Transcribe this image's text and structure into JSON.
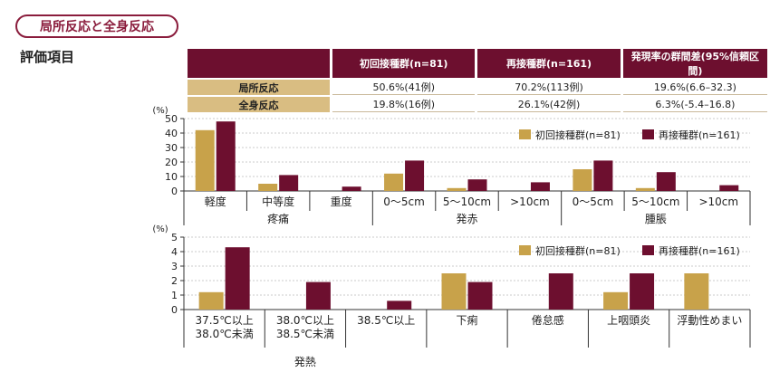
{
  "header": {
    "title": "局所反応と全身反応"
  },
  "section": {
    "label": "評価項目"
  },
  "colors": {
    "initial": "#c8a24a",
    "booster": "#6d0f2f",
    "header_bg": "#6d0f2f",
    "row_bg": "#d9bd82"
  },
  "table": {
    "columns": [
      "初回接種群(n=81)",
      "再接種群(n=161)",
      "発現率の群間差(95%信頼区間)"
    ],
    "rows": [
      {
        "label": "局所反応",
        "values": [
          "50.6%(41例)",
          "70.2%(113例)",
          "19.6%(6.6–32.3)"
        ]
      },
      {
        "label": "全身反応",
        "values": [
          "19.8%(16例)",
          "26.1%(42例)",
          "6.3%(-5.4–16.8)"
        ]
      }
    ]
  },
  "chart_data": [
    {
      "type": "bar",
      "y_unit": "(%)",
      "ylim": [
        0,
        50
      ],
      "yticks": [
        0,
        10,
        20,
        30,
        40,
        50
      ],
      "grid": true,
      "legend_position": "top-right",
      "categories": [
        "軽度",
        "中等度",
        "重度",
        "0～5cm",
        "5～10cm",
        ">10cm",
        "0～5cm",
        "5～10cm",
        ">10cm"
      ],
      "category_sublabels": [
        "",
        "疼痛",
        "",
        "",
        "発赤",
        "",
        "",
        "腫脹",
        ""
      ],
      "groups": [
        {
          "label": "疼痛",
          "start": 0,
          "end": 2
        },
        {
          "label": "発赤",
          "start": 3,
          "end": 5
        },
        {
          "label": "腫脹",
          "start": 6,
          "end": 8
        }
      ],
      "series": [
        {
          "name": "初回接種群(n=81)",
          "values": [
            42,
            5,
            0,
            12,
            2,
            0,
            15,
            2,
            0
          ]
        },
        {
          "name": "再接種群(n=161)",
          "values": [
            48,
            11,
            3,
            21,
            8,
            6,
            21,
            13,
            4
          ]
        }
      ]
    },
    {
      "type": "bar",
      "y_unit": "(%)",
      "ylim": [
        0,
        5
      ],
      "yticks": [
        0,
        1,
        2,
        3,
        4,
        5
      ],
      "grid": true,
      "legend_position": "top-right",
      "categories": [
        [
          "37.5℃以上",
          "38.0℃未満"
        ],
        [
          "38.0℃以上",
          "38.5℃未満"
        ],
        [
          "38.5℃以上"
        ],
        [
          "下痢"
        ],
        [
          "倦怠感"
        ],
        [
          "上咽頭炎"
        ],
        [
          "浮動性めまい"
        ]
      ],
      "groups": [
        {
          "label": "発熱",
          "start": 0,
          "end": 2
        }
      ],
      "series": [
        {
          "name": "初回接種群(n=81)",
          "values": [
            1.2,
            0,
            0,
            2.5,
            0,
            1.2,
            2.5
          ]
        },
        {
          "name": "再接種群(n=161)",
          "values": [
            4.3,
            1.9,
            0.6,
            1.9,
            2.5,
            2.5,
            0
          ]
        }
      ]
    }
  ]
}
